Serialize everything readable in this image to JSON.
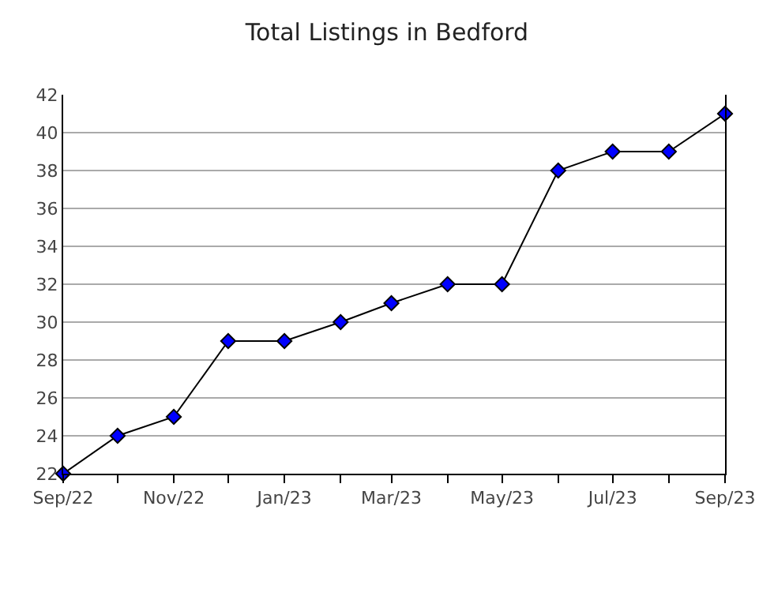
{
  "chart_data": {
    "type": "line",
    "title": "Total Listings in Bedford",
    "x": [
      "2022-09",
      "2022-10",
      "2022-11",
      "2022-12",
      "2023-01",
      "2023-02",
      "2023-03",
      "2023-04",
      "2023-05",
      "2023-06",
      "2023-07",
      "2023-08",
      "2023-09"
    ],
    "series": [
      {
        "color": "#000000",
        "values": [
          22,
          24,
          25,
          29,
          29,
          30,
          31,
          32,
          32,
          38,
          39,
          39,
          41
        ]
      }
    ],
    "xlim": [
      "2022-09",
      "2023-09"
    ],
    "xticks": [
      {
        "value": "2022-09",
        "label": "Sep/22"
      },
      {
        "value": "2022-10",
        "label": null
      },
      {
        "value": "2022-11",
        "label": "Nov/22"
      },
      {
        "value": "2022-12",
        "label": null
      },
      {
        "value": "2023-01",
        "label": "Jan/23"
      },
      {
        "value": "2023-02",
        "label": null
      },
      {
        "value": "2023-03",
        "label": "Mar/23"
      },
      {
        "value": "2023-04",
        "label": null
      },
      {
        "value": "2023-05",
        "label": "May/23"
      },
      {
        "value": "2023-06",
        "label": null
      },
      {
        "value": "2023-07",
        "label": "Jul/23"
      },
      {
        "value": "2023-08",
        "label": null
      },
      {
        "value": "2023-09",
        "label": "Sep/23"
      }
    ],
    "ylim": [
      22,
      42
    ],
    "yticks": [
      22,
      24,
      26,
      28,
      30,
      32,
      34,
      36,
      38,
      40,
      42
    ],
    "grid": "y",
    "marker": "diamond",
    "line_style": "solid"
  }
}
